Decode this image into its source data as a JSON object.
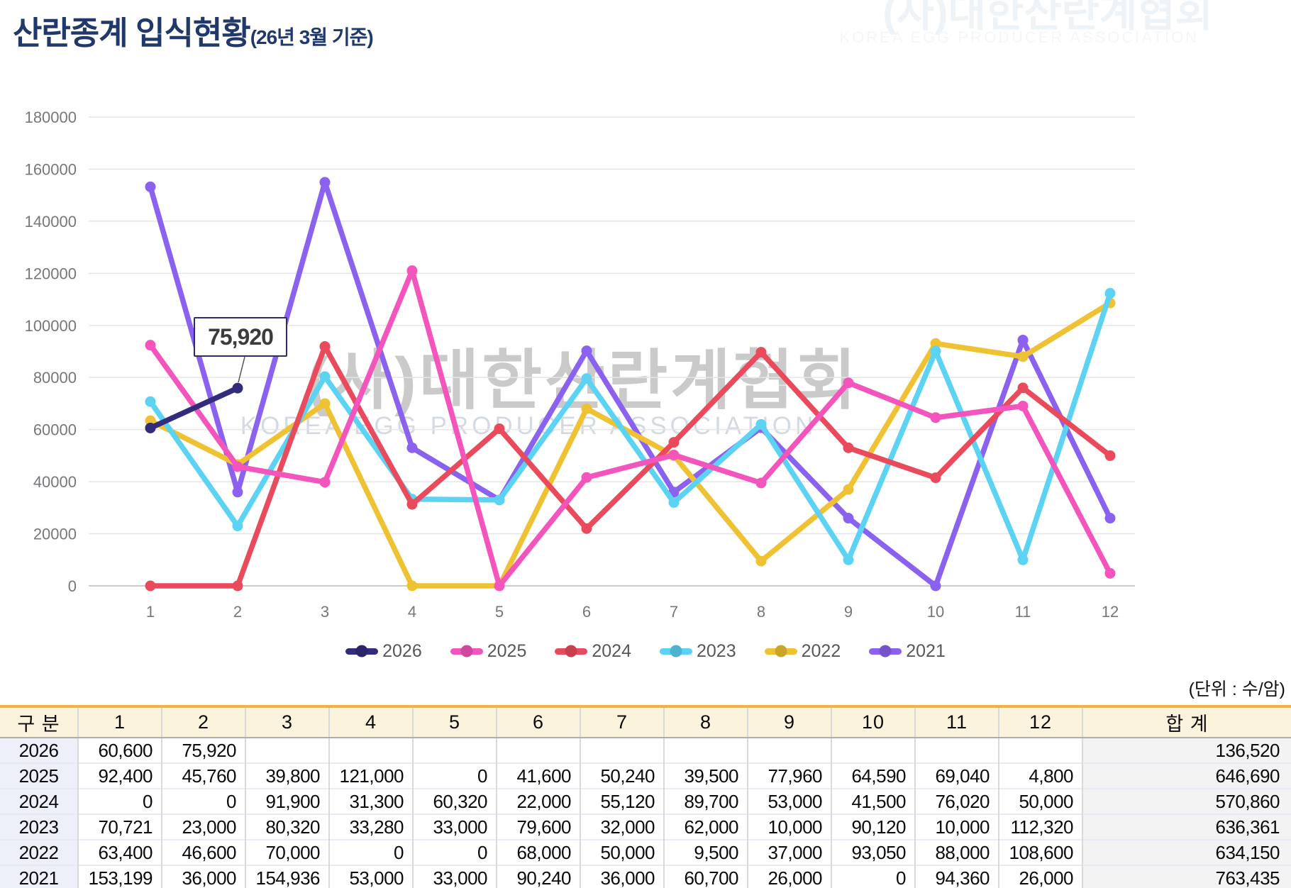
{
  "page": {
    "title": "산란종계 입식현황",
    "title_suffix": "(26년 3월 기준)"
  },
  "watermark": {
    "korean": "(사)대한산란계협회",
    "english": "KOREA EGG PRODUCER ASSOCIATION"
  },
  "unit_note": "(단위 : 수/암)",
  "chart_data": {
    "type": "line",
    "x": [
      1,
      2,
      3,
      4,
      5,
      6,
      7,
      8,
      9,
      10,
      11,
      12
    ],
    "xlabel": "",
    "ylabel": "",
    "ylim": [
      0,
      180000
    ],
    "ytick_step": 20000,
    "grid": true,
    "legend_position": "bottom",
    "annotation": {
      "series": "2026",
      "month": 2,
      "text": "75,920"
    },
    "axis_color": "#77777B",
    "grid_color": "#e5e5e8",
    "zero_line_color": "#cbcbcf",
    "series": [
      {
        "name": "2026",
        "color": "#332B7B",
        "values": [
          60600,
          75920,
          null,
          null,
          null,
          null,
          null,
          null,
          null,
          null,
          null,
          null
        ]
      },
      {
        "name": "2025",
        "color": "#F455BC",
        "values": [
          92400,
          45760,
          39800,
          121000,
          0,
          41600,
          50240,
          39500,
          77960,
          64590,
          69040,
          4800
        ]
      },
      {
        "name": "2024",
        "color": "#E94B5C",
        "values": [
          0,
          0,
          91900,
          31300,
          60320,
          22000,
          55120,
          89700,
          53000,
          41500,
          76020,
          50000
        ]
      },
      {
        "name": "2023",
        "color": "#5CD3F3",
        "values": [
          70721,
          23000,
          80320,
          33280,
          33000,
          79600,
          32000,
          62000,
          10000,
          90120,
          10000,
          112320
        ]
      },
      {
        "name": "2022",
        "color": "#EFC233",
        "values": [
          63400,
          46600,
          70000,
          0,
          0,
          68000,
          50000,
          9500,
          37000,
          93050,
          88000,
          108600
        ]
      },
      {
        "name": "2021",
        "color": "#8B61EF",
        "values": [
          153199,
          36000,
          154936,
          53000,
          33000,
          90240,
          36000,
          60700,
          26000,
          0,
          94360,
          26000
        ]
      }
    ]
  },
  "table": {
    "header": [
      "구 분",
      "1",
      "2",
      "3",
      "4",
      "5",
      "6",
      "7",
      "8",
      "9",
      "10",
      "11",
      "12",
      "합 계"
    ],
    "rows": [
      {
        "label": "2026",
        "values": [
          "60,600",
          "75,920",
          "",
          "",
          "",
          "",
          "",
          "",
          "",
          "",
          "",
          ""
        ],
        "total": "136,520"
      },
      {
        "label": "2025",
        "values": [
          "92,400",
          "45,760",
          "39,800",
          "121,000",
          "0",
          "41,600",
          "50,240",
          "39,500",
          "77,960",
          "64,590",
          "69,040",
          "4,800"
        ],
        "total": "646,690"
      },
      {
        "label": "2024",
        "values": [
          "0",
          "0",
          "91,900",
          "31,300",
          "60,320",
          "22,000",
          "55,120",
          "89,700",
          "53,000",
          "41,500",
          "76,020",
          "50,000"
        ],
        "total": "570,860"
      },
      {
        "label": "2023",
        "values": [
          "70,721",
          "23,000",
          "80,320",
          "33,280",
          "33,000",
          "79,600",
          "32,000",
          "62,000",
          "10,000",
          "90,120",
          "10,000",
          "112,320"
        ],
        "total": "636,361"
      },
      {
        "label": "2022",
        "values": [
          "63,400",
          "46,600",
          "70,000",
          "0",
          "0",
          "68,000",
          "50,000",
          "9,500",
          "37,000",
          "93,050",
          "88,000",
          "108,600"
        ],
        "total": "634,150"
      },
      {
        "label": "2021",
        "values": [
          "153,199",
          "36,000",
          "154,936",
          "53,000",
          "33,000",
          "90,240",
          "36,000",
          "60,700",
          "26,000",
          "0",
          "94,360",
          "26,000"
        ],
        "total": "763,435"
      }
    ]
  }
}
